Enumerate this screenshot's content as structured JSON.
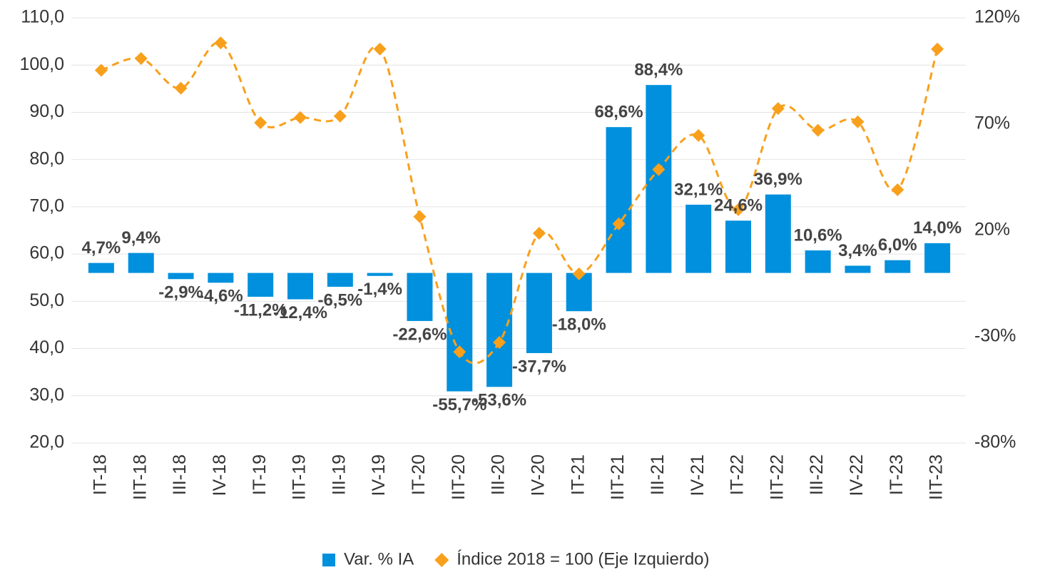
{
  "chart_data": {
    "type": "bar+line",
    "categories": [
      "IT-18",
      "IIT-18",
      "III-18",
      "IV-18",
      "IT-19",
      "IIT-19",
      "III-19",
      "IV-19",
      "IT-20",
      "IIT-20",
      "III-20",
      "IV-20",
      "IT-21",
      "IIT-21",
      "III-21",
      "IV-21",
      "IT-22",
      "IIT-22",
      "III-22",
      "IV-22",
      "IT-23",
      "IIT-23"
    ],
    "series": [
      {
        "name": "Var. % IA",
        "type": "bar",
        "axis": "y2",
        "color": "#0090dd",
        "values": [
          4.7,
          9.4,
          -2.9,
          -4.6,
          -11.2,
          -12.4,
          -6.5,
          -1.4,
          -22.6,
          -55.7,
          -53.6,
          -37.7,
          -18.0,
          68.6,
          88.4,
          32.1,
          24.6,
          36.9,
          10.6,
          3.4,
          6.0,
          14.0
        ],
        "value_labels": [
          "4,7%",
          "9,4%",
          "-2,9%",
          "-4,6%",
          "-11,2%",
          "-12,4%",
          "-6,5%",
          "-1,4%",
          "-22,6%",
          "-55,7%",
          "-53,6%",
          "-37,7%",
          "-18,0%",
          "68,6%",
          "88,4%",
          "32,1%",
          "24,6%",
          "36,9%",
          "10,6%",
          "3,4%",
          "6,0%",
          "14,0%"
        ]
      },
      {
        "name": "Índice 2018 = 100 (Eje Izquierdo)",
        "type": "line",
        "axis": "y",
        "color": "#f8a01c",
        "values": [
          98.9,
          101.4,
          95.1,
          104.7,
          87.8,
          88.9,
          89.2,
          103.4,
          67.9,
          39.3,
          41.3,
          64.4,
          55.8,
          66.4,
          77.9,
          85.1,
          69.4,
          90.8,
          86.2,
          88.0,
          73.6,
          103.4
        ]
      }
    ],
    "ylim": [
      20,
      110
    ],
    "yticks": [
      {
        "value": 20,
        "label": "20,0"
      },
      {
        "value": 30,
        "label": "30,0"
      },
      {
        "value": 40,
        "label": "40,0"
      },
      {
        "value": 50,
        "label": "50,0"
      },
      {
        "value": 60,
        "label": "60,0"
      },
      {
        "value": 70,
        "label": "70,0"
      },
      {
        "value": 80,
        "label": "80,0"
      },
      {
        "value": 90,
        "label": "90,0"
      },
      {
        "value": 100,
        "label": "100,0"
      },
      {
        "value": 110,
        "label": "110,0"
      }
    ],
    "y2lim": [
      -80,
      120
    ],
    "y2ticks": [
      {
        "value": -80,
        "label": "-80%"
      },
      {
        "value": -30,
        "label": "-30%"
      },
      {
        "value": 20,
        "label": "20%"
      },
      {
        "value": 70,
        "label": "70%"
      },
      {
        "value": 120,
        "label": "120%"
      }
    ],
    "grid": true,
    "legend": "bottom"
  }
}
